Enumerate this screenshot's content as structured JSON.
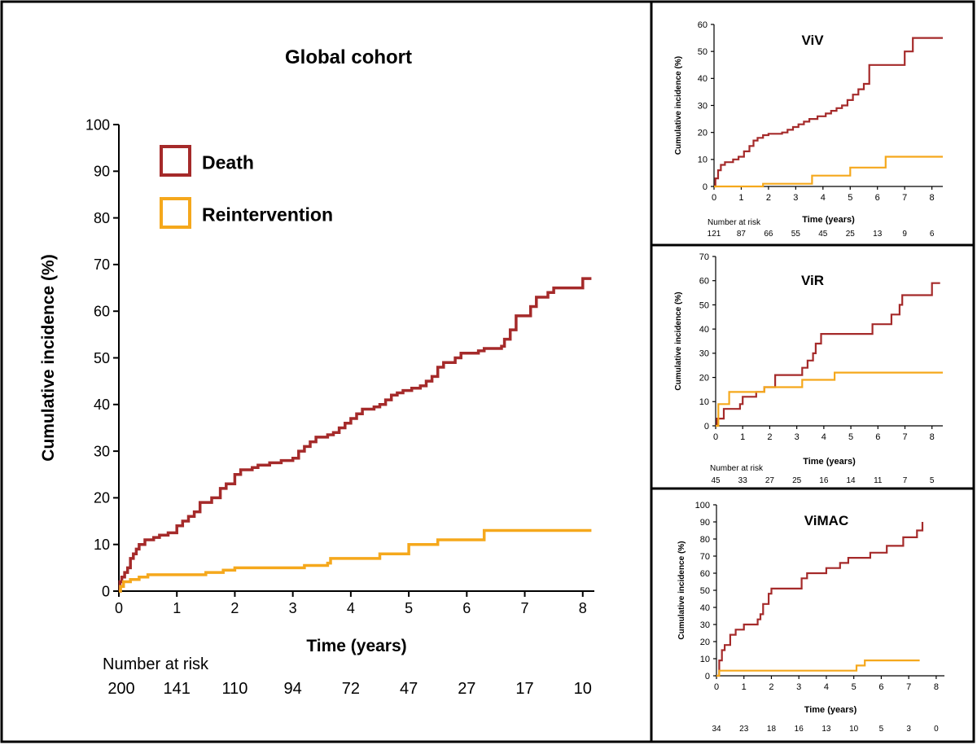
{
  "colors": {
    "death": "#A52A2A",
    "reintervention": "#F5A81C",
    "axis": "#000000",
    "border": "#000000"
  },
  "chart_data": [
    {
      "id": "global",
      "type": "line",
      "title": "Global cohort",
      "xlabel": "Time (years)",
      "ylabel": "Cumulative incidence (%)",
      "xlim": [
        0,
        8.2
      ],
      "ylim": [
        0,
        100
      ],
      "xticks": [
        0,
        1,
        2,
        3,
        4,
        5,
        6,
        7,
        8
      ],
      "yticks": [
        0,
        10,
        20,
        30,
        40,
        50,
        60,
        70,
        80,
        90,
        100
      ],
      "grid": false,
      "legend": {
        "position": "top-left",
        "entries": [
          "Death",
          "Reintervention"
        ]
      },
      "risk_label": "Number at risk",
      "risk_values": [
        "200",
        "141",
        "110",
        "94",
        "72",
        "47",
        "27",
        "17",
        "10"
      ],
      "series": [
        {
          "name": "Death",
          "step": true,
          "points": [
            [
              0,
              0
            ],
            [
              0.02,
              2
            ],
            [
              0.05,
              3
            ],
            [
              0.1,
              4
            ],
            [
              0.15,
              5
            ],
            [
              0.2,
              7
            ],
            [
              0.25,
              8
            ],
            [
              0.3,
              9
            ],
            [
              0.35,
              10
            ],
            [
              0.45,
              11
            ],
            [
              0.6,
              11.5
            ],
            [
              0.7,
              12
            ],
            [
              0.85,
              12.5
            ],
            [
              1.0,
              14
            ],
            [
              1.1,
              15
            ],
            [
              1.2,
              16
            ],
            [
              1.3,
              17
            ],
            [
              1.4,
              19
            ],
            [
              1.6,
              20
            ],
            [
              1.75,
              22
            ],
            [
              1.85,
              23
            ],
            [
              2.0,
              25
            ],
            [
              2.1,
              26
            ],
            [
              2.3,
              26.5
            ],
            [
              2.4,
              27
            ],
            [
              2.6,
              27.5
            ],
            [
              2.8,
              28
            ],
            [
              3.0,
              28.5
            ],
            [
              3.1,
              30
            ],
            [
              3.2,
              31
            ],
            [
              3.3,
              32
            ],
            [
              3.4,
              33
            ],
            [
              3.6,
              33.5
            ],
            [
              3.7,
              34
            ],
            [
              3.8,
              35
            ],
            [
              3.9,
              36
            ],
            [
              4.0,
              37
            ],
            [
              4.1,
              38
            ],
            [
              4.2,
              39
            ],
            [
              4.4,
              39.5
            ],
            [
              4.5,
              40
            ],
            [
              4.6,
              41
            ],
            [
              4.7,
              42
            ],
            [
              4.8,
              42.5
            ],
            [
              4.9,
              43
            ],
            [
              5.05,
              43.5
            ],
            [
              5.2,
              44
            ],
            [
              5.3,
              45
            ],
            [
              5.4,
              46
            ],
            [
              5.5,
              48
            ],
            [
              5.6,
              49
            ],
            [
              5.8,
              50
            ],
            [
              5.9,
              51
            ],
            [
              6.2,
              51.5
            ],
            [
              6.3,
              52
            ],
            [
              6.6,
              52.5
            ],
            [
              6.65,
              54
            ],
            [
              6.75,
              56
            ],
            [
              6.85,
              59
            ],
            [
              7.1,
              61
            ],
            [
              7.2,
              63
            ],
            [
              7.4,
              64
            ],
            [
              7.5,
              65
            ],
            [
              7.8,
              65
            ],
            [
              8.0,
              67
            ],
            [
              8.15,
              67
            ]
          ]
        },
        {
          "name": "Reintervention",
          "step": true,
          "points": [
            [
              0,
              0
            ],
            [
              0.03,
              1
            ],
            [
              0.08,
              2
            ],
            [
              0.2,
              2.5
            ],
            [
              0.35,
              3
            ],
            [
              0.5,
              3.5
            ],
            [
              1.5,
              4
            ],
            [
              1.8,
              4.5
            ],
            [
              2.0,
              5
            ],
            [
              3.2,
              5.5
            ],
            [
              3.6,
              6
            ],
            [
              3.65,
              7
            ],
            [
              4.5,
              8
            ],
            [
              5.0,
              10
            ],
            [
              5.5,
              11
            ],
            [
              6.3,
              13
            ],
            [
              8.15,
              13
            ]
          ]
        }
      ]
    },
    {
      "id": "viv",
      "type": "line",
      "title": "ViV",
      "xlabel": "Time (years)",
      "ylabel": "Cumulative incidence (%)",
      "xlim": [
        0,
        8.4
      ],
      "ylim": [
        0,
        60
      ],
      "xticks": [
        0,
        1,
        2,
        3,
        4,
        5,
        6,
        7,
        8
      ],
      "yticks": [
        0,
        10,
        20,
        30,
        40,
        50,
        60
      ],
      "grid": false,
      "risk_label": "Number at risk",
      "risk_values": [
        "121",
        "87",
        "66",
        "55",
        "45",
        "25",
        "13",
        "9",
        "6"
      ],
      "series": [
        {
          "name": "Death",
          "step": true,
          "points": [
            [
              0,
              0
            ],
            [
              0.05,
              3
            ],
            [
              0.15,
              6
            ],
            [
              0.25,
              8
            ],
            [
              0.4,
              9
            ],
            [
              0.7,
              10
            ],
            [
              0.9,
              11
            ],
            [
              1.1,
              13
            ],
            [
              1.3,
              15
            ],
            [
              1.45,
              17
            ],
            [
              1.6,
              18
            ],
            [
              1.8,
              19
            ],
            [
              2.0,
              19.5
            ],
            [
              2.5,
              20
            ],
            [
              2.7,
              21
            ],
            [
              2.9,
              22
            ],
            [
              3.1,
              23
            ],
            [
              3.3,
              24
            ],
            [
              3.5,
              25
            ],
            [
              3.8,
              26
            ],
            [
              4.1,
              27
            ],
            [
              4.3,
              28
            ],
            [
              4.5,
              29
            ],
            [
              4.7,
              30
            ],
            [
              4.9,
              32
            ],
            [
              5.1,
              34
            ],
            [
              5.3,
              36
            ],
            [
              5.5,
              38
            ],
            [
              5.7,
              45
            ],
            [
              7.0,
              50
            ],
            [
              7.3,
              55
            ],
            [
              8.4,
              55
            ]
          ]
        },
        {
          "name": "Reintervention",
          "step": true,
          "points": [
            [
              0,
              0
            ],
            [
              1.8,
              1
            ],
            [
              3.6,
              4
            ],
            [
              5.0,
              7
            ],
            [
              6.3,
              11
            ],
            [
              8.4,
              11
            ]
          ]
        }
      ]
    },
    {
      "id": "vir",
      "type": "line",
      "title": "ViR",
      "xlabel": "Time (years)",
      "ylabel": "Cumulative incidence (%)",
      "xlim": [
        0,
        8.4
      ],
      "ylim": [
        0,
        70
      ],
      "xticks": [
        0,
        1,
        2,
        3,
        4,
        5,
        6,
        7,
        8
      ],
      "yticks": [
        0,
        10,
        20,
        30,
        40,
        50,
        60,
        70
      ],
      "grid": false,
      "risk_label": "Number at risk",
      "risk_values": [
        "45",
        "33",
        "27",
        "25",
        "16",
        "14",
        "11",
        "7",
        "5"
      ],
      "series": [
        {
          "name": "Death",
          "step": true,
          "points": [
            [
              0,
              0
            ],
            [
              0.05,
              3
            ],
            [
              0.3,
              7
            ],
            [
              0.9,
              9
            ],
            [
              1.0,
              12
            ],
            [
              1.5,
              14
            ],
            [
              1.8,
              16
            ],
            [
              2.2,
              21
            ],
            [
              3.2,
              24
            ],
            [
              3.4,
              27
            ],
            [
              3.6,
              30
            ],
            [
              3.7,
              34
            ],
            [
              3.9,
              38
            ],
            [
              5.8,
              42
            ],
            [
              6.5,
              46
            ],
            [
              6.8,
              50
            ],
            [
              6.9,
              54
            ],
            [
              8.0,
              59
            ],
            [
              8.3,
              59
            ]
          ]
        },
        {
          "name": "Reintervention",
          "step": true,
          "points": [
            [
              0,
              0
            ],
            [
              0.1,
              9
            ],
            [
              0.5,
              14
            ],
            [
              1.8,
              16
            ],
            [
              3.2,
              19
            ],
            [
              4.4,
              22
            ],
            [
              8.4,
              22
            ]
          ]
        }
      ]
    },
    {
      "id": "vimac",
      "type": "line",
      "title": "ViMAC",
      "xlabel": "Time (years)",
      "ylabel": "Cumulative incidence (%)",
      "xlim": [
        0,
        8.3
      ],
      "ylim": [
        0,
        100
      ],
      "xticks": [
        0,
        1,
        2,
        3,
        4,
        5,
        6,
        7,
        8
      ],
      "yticks": [
        0,
        10,
        20,
        30,
        40,
        50,
        60,
        70,
        80,
        90,
        100
      ],
      "grid": false,
      "risk_label": "Number at risk",
      "risk_values": [
        "34",
        "23",
        "18",
        "16",
        "13",
        "10",
        "5",
        "3",
        "0"
      ],
      "series": [
        {
          "name": "Death",
          "step": true,
          "points": [
            [
              0,
              0
            ],
            [
              0.1,
              9
            ],
            [
              0.2,
              15
            ],
            [
              0.3,
              18
            ],
            [
              0.5,
              24
            ],
            [
              0.7,
              27
            ],
            [
              1.0,
              30
            ],
            [
              1.5,
              33
            ],
            [
              1.6,
              36
            ],
            [
              1.7,
              42
            ],
            [
              1.9,
              48
            ],
            [
              2.0,
              51
            ],
            [
              3.1,
              57
            ],
            [
              3.3,
              60
            ],
            [
              4.0,
              63
            ],
            [
              4.5,
              66
            ],
            [
              4.8,
              69
            ],
            [
              5.6,
              72
            ],
            [
              6.2,
              76
            ],
            [
              6.8,
              81
            ],
            [
              7.3,
              85
            ],
            [
              7.5,
              90
            ]
          ]
        },
        {
          "name": "Reintervention",
          "step": true,
          "points": [
            [
              0,
              0
            ],
            [
              0.1,
              3
            ],
            [
              5.1,
              6
            ],
            [
              5.4,
              9
            ],
            [
              7.4,
              9
            ]
          ]
        }
      ]
    }
  ]
}
